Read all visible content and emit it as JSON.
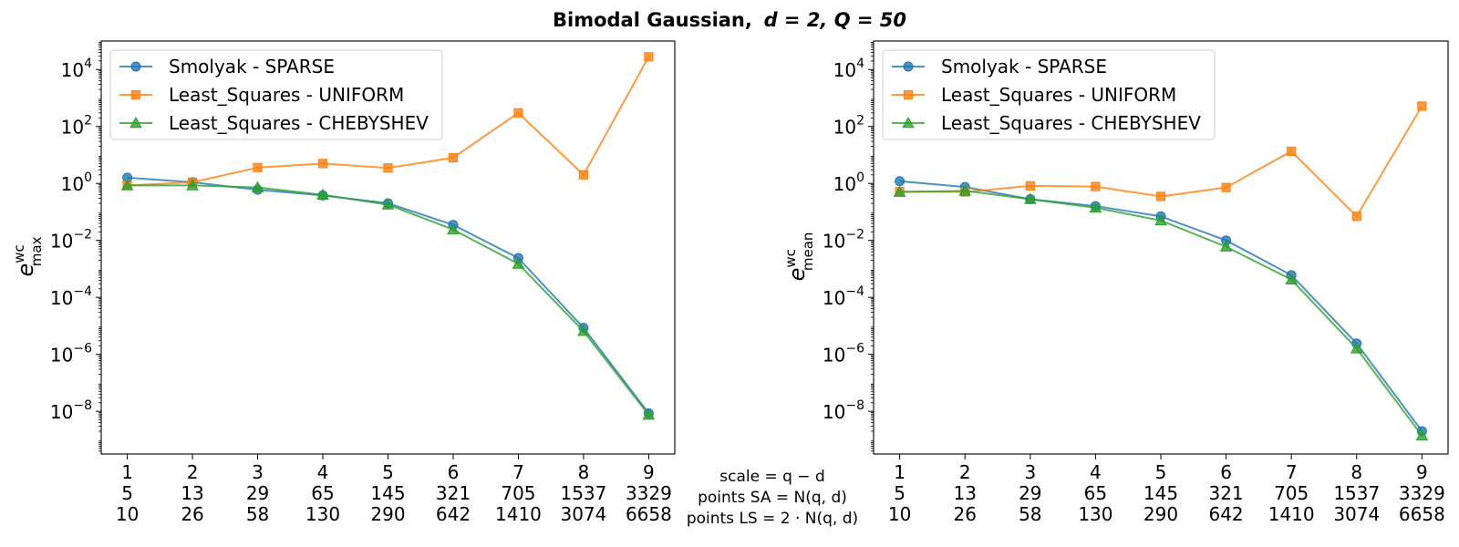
{
  "figure": {
    "title_bold": "Bimodal Gaussian,",
    "title_math": "d = 2, Q = 50",
    "scale_label": "scale = q − d",
    "points_sa_label": "points SA = N(q, d)",
    "points_ls_label": "points LS = 2 · N(q, d)"
  },
  "series_styles": [
    {
      "name": "Smolyak - SPARSE",
      "color": "#1f77b4",
      "marker": "circle"
    },
    {
      "name": "Least_Squares - UNIFORM",
      "color": "#ff7f0e",
      "marker": "square"
    },
    {
      "name": "Least_Squares - CHEBYSHEV",
      "color": "#2ca02c",
      "marker": "triangle"
    }
  ],
  "chart_data": [
    {
      "type": "line",
      "yscale": "log",
      "ylabel": "e^wc_max",
      "ylabel_main": "e",
      "ylabel_sup": "wc",
      "ylabel_sub": "max",
      "x": [
        1,
        2,
        3,
        4,
        5,
        6,
        7,
        8,
        9
      ],
      "x_rows": [
        [
          "1",
          "2",
          "3",
          "4",
          "5",
          "6",
          "7",
          "8",
          "9"
        ],
        [
          "5",
          "13",
          "29",
          "65",
          "145",
          "321",
          "705",
          "1537",
          "3329"
        ],
        [
          "10",
          "26",
          "58",
          "130",
          "290",
          "642",
          "1410",
          "3074",
          "6658"
        ]
      ],
      "y_ticks": [
        {
          "value": 1e-08,
          "exp": "−8"
        },
        {
          "value": 1e-06,
          "exp": "−6"
        },
        {
          "value": 0.0001,
          "exp": "−4"
        },
        {
          "value": 0.01,
          "exp": "−2"
        },
        {
          "value": 1,
          "exp": "0"
        },
        {
          "value": 100,
          "exp": "2"
        },
        {
          "value": 10000,
          "exp": "4"
        }
      ],
      "tick_base": "10",
      "xlim": [
        0.6,
        9.4
      ],
      "ylim_log10": [
        -9.5,
        5.0
      ],
      "legend_loc": "upper left",
      "grid": false,
      "series": [
        {
          "name": "Smolyak - SPARSE",
          "values": [
            1.6,
            1.1,
            0.6,
            0.38,
            0.2,
            0.035,
            0.0024,
            8.5e-06,
            8.5e-09
          ]
        },
        {
          "name": "Least_Squares - UNIFORM",
          "values": [
            0.85,
            1.1,
            3.6,
            5.0,
            3.5,
            8.0,
            300,
            2.0,
            28000
          ]
        },
        {
          "name": "Least_Squares - CHEBYSHEV",
          "values": [
            0.85,
            0.85,
            0.72,
            0.4,
            0.18,
            0.024,
            0.0015,
            6.5e-06,
            7.5e-09
          ]
        }
      ]
    },
    {
      "type": "line",
      "yscale": "log",
      "ylabel": "e^wc_mean",
      "ylabel_main": "e",
      "ylabel_sup": "wc",
      "ylabel_sub": "mean",
      "x": [
        1,
        2,
        3,
        4,
        5,
        6,
        7,
        8,
        9
      ],
      "x_rows": [
        [
          "1",
          "2",
          "3",
          "4",
          "5",
          "6",
          "7",
          "8",
          "9"
        ],
        [
          "5",
          "13",
          "29",
          "65",
          "145",
          "321",
          "705",
          "1537",
          "3329"
        ],
        [
          "10",
          "26",
          "58",
          "130",
          "290",
          "642",
          "1410",
          "3074",
          "6658"
        ]
      ],
      "y_ticks": [
        {
          "value": 1e-08,
          "exp": "−8"
        },
        {
          "value": 1e-06,
          "exp": "−6"
        },
        {
          "value": 0.0001,
          "exp": "−4"
        },
        {
          "value": 0.01,
          "exp": "−2"
        },
        {
          "value": 1,
          "exp": "0"
        },
        {
          "value": 100,
          "exp": "2"
        },
        {
          "value": 10000,
          "exp": "4"
        }
      ],
      "tick_base": "10",
      "xlim": [
        0.6,
        9.4
      ],
      "ylim_log10": [
        -9.5,
        5.0
      ],
      "legend_loc": "upper left",
      "grid": false,
      "series": [
        {
          "name": "Smolyak - SPARSE",
          "values": [
            1.2,
            0.75,
            0.28,
            0.16,
            0.07,
            0.01,
            0.0006,
            2.4e-06,
            2e-09
          ]
        },
        {
          "name": "Least_Squares - UNIFORM",
          "values": [
            0.52,
            0.5,
            0.82,
            0.78,
            0.35,
            0.72,
            13.5,
            0.07,
            520
          ]
        },
        {
          "name": "Least_Squares - CHEBYSHEV",
          "values": [
            0.5,
            0.55,
            0.28,
            0.14,
            0.05,
            0.006,
            0.00042,
            1.6e-06,
            1.4e-09
          ]
        }
      ]
    }
  ]
}
